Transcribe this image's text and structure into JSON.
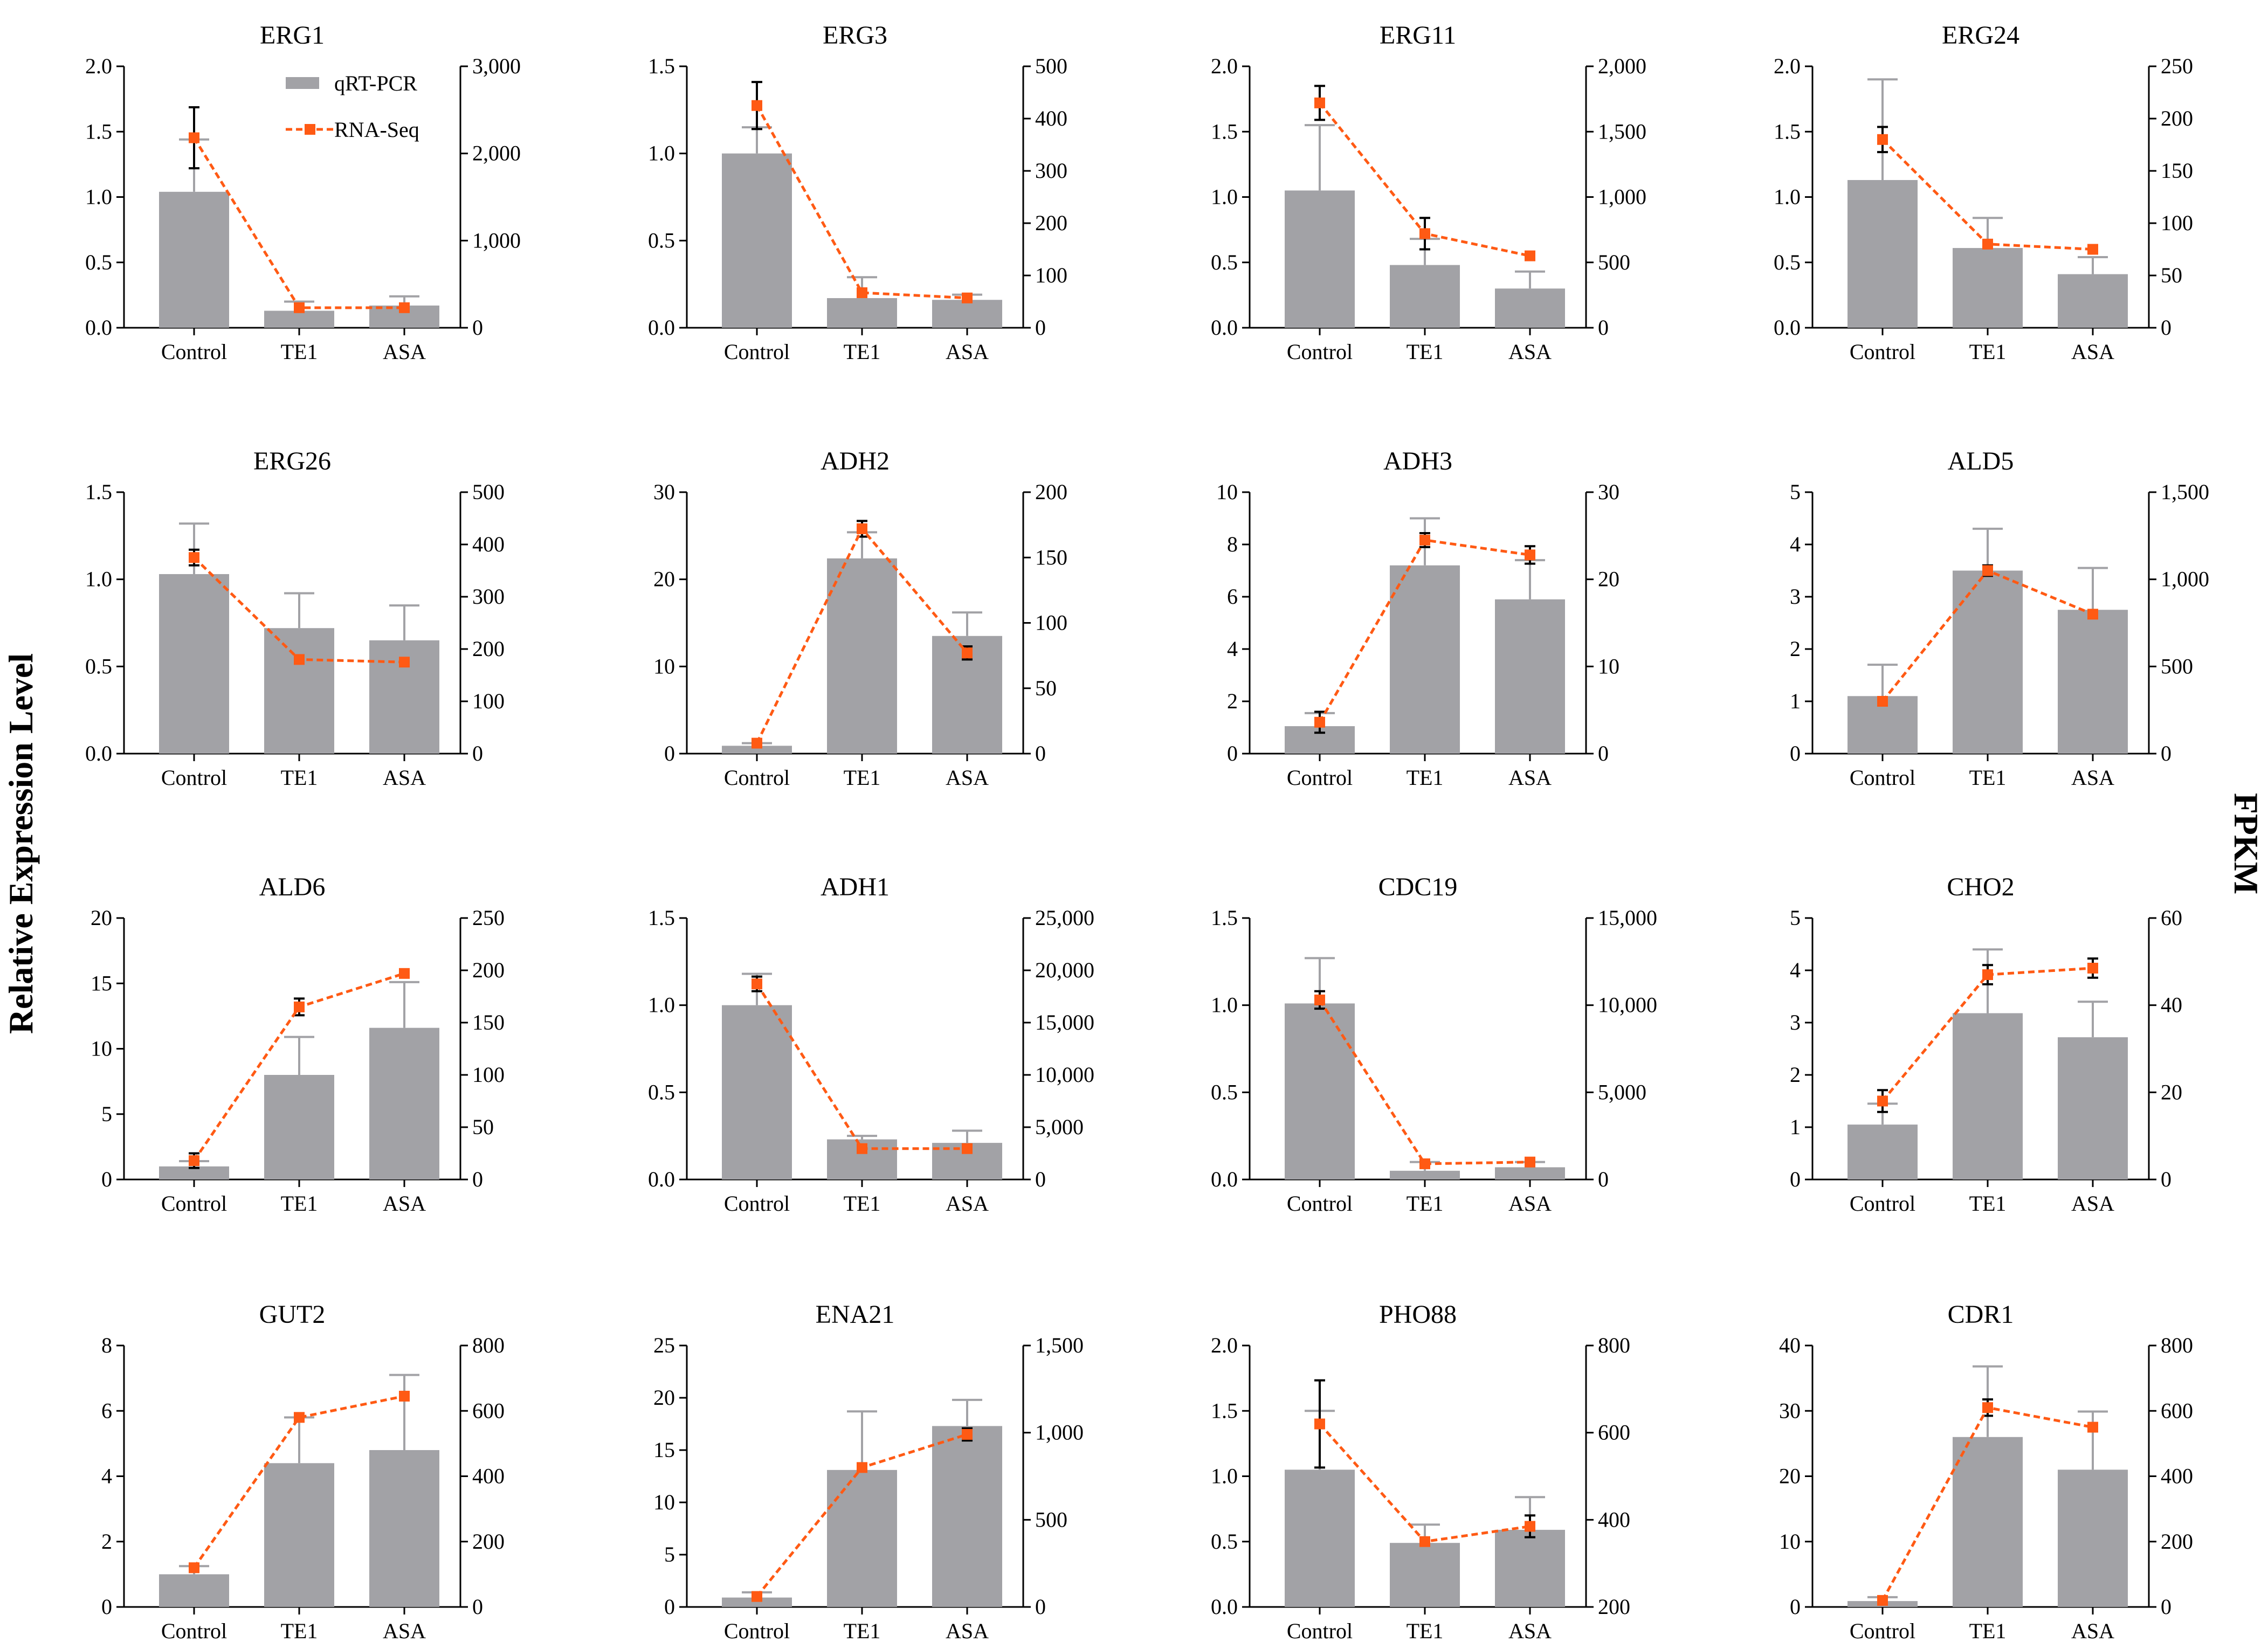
{
  "figure": {
    "left_axis_label": "Relative Expression Level",
    "right_axis_label": "FPKM",
    "legend": [
      {
        "label": "qRT-PCR",
        "kind": "bar"
      },
      {
        "label": "RNA-Seq",
        "kind": "line"
      }
    ],
    "colors": {
      "bar": "#a2a2a6",
      "line": "#ff5a14",
      "error_bar": "#a2a2a6",
      "line_error": "#000000"
    }
  },
  "chart_data": [
    {
      "type": "bar+line",
      "title": "ERG1",
      "categories": [
        "Control",
        "TE1",
        "ASA"
      ],
      "left_ticks": [
        "0.0",
        "0.5",
        "1.0",
        "1.5",
        "2.0"
      ],
      "left_max": 2.0,
      "right_ticks": [
        "0",
        "1,000",
        "2,000",
        "3,000"
      ],
      "right_max": 3000,
      "bars": [
        1.04,
        0.13,
        0.17
      ],
      "bar_err": [
        0.4,
        0.07,
        0.07
      ],
      "line": [
        2180,
        230,
        230
      ],
      "line_err": [
        350,
        0,
        0
      ]
    },
    {
      "type": "bar+line",
      "title": "ERG3",
      "categories": [
        "Control",
        "TE1",
        "ASA"
      ],
      "left_ticks": [
        "0.0",
        "0.5",
        "1.0",
        "1.5"
      ],
      "left_max": 1.5,
      "right_ticks": [
        "0",
        "100",
        "200",
        "300",
        "400",
        "500"
      ],
      "right_max": 500,
      "bars": [
        1.0,
        0.17,
        0.16
      ],
      "bar_err": [
        0.15,
        0.12,
        0.03
      ],
      "line": [
        425,
        67,
        57
      ],
      "line_err": [
        45,
        0,
        5
      ]
    },
    {
      "type": "bar+line",
      "title": "ERG11",
      "categories": [
        "Control",
        "TE1",
        "ASA"
      ],
      "left_ticks": [
        "0.0",
        "0.5",
        "1.0",
        "1.5",
        "2.0"
      ],
      "left_max": 2.0,
      "right_ticks": [
        "0",
        "500",
        "1,000",
        "1,500",
        "2,000"
      ],
      "right_max": 2000,
      "bars": [
        1.05,
        0.48,
        0.3
      ],
      "bar_err": [
        0.5,
        0.2,
        0.13
      ],
      "line": [
        1720,
        720,
        550
      ],
      "line_err": [
        130,
        120,
        0
      ]
    },
    {
      "type": "bar+line",
      "title": "ERG24",
      "categories": [
        "Control",
        "TE1",
        "ASA"
      ],
      "left_ticks": [
        "0.0",
        "0.5",
        "1.0",
        "1.5",
        "2.0"
      ],
      "left_max": 2.0,
      "right_ticks": [
        "0",
        "50",
        "100",
        "150",
        "200",
        "250"
      ],
      "right_max": 250,
      "bars": [
        1.13,
        0.61,
        0.41
      ],
      "bar_err": [
        0.77,
        0.23,
        0.13
      ],
      "line": [
        180,
        80,
        75
      ],
      "line_err": [
        12,
        0,
        0
      ]
    },
    {
      "type": "bar+line",
      "title": "ERG26",
      "categories": [
        "Control",
        "TE1",
        "ASA"
      ],
      "left_ticks": [
        "0.0",
        "0.5",
        "1.0",
        "1.5"
      ],
      "left_max": 1.5,
      "right_ticks": [
        "0",
        "100",
        "200",
        "300",
        "400",
        "500"
      ],
      "right_max": 500,
      "bars": [
        1.03,
        0.72,
        0.65
      ],
      "bar_err": [
        0.29,
        0.2,
        0.2
      ],
      "line": [
        375,
        180,
        175
      ],
      "line_err": [
        15,
        0,
        0
      ]
    },
    {
      "type": "bar+line",
      "title": "ADH2",
      "categories": [
        "Control",
        "TE1",
        "ASA"
      ],
      "left_ticks": [
        "0",
        "10",
        "20",
        "30"
      ],
      "left_max": 30,
      "right_ticks": [
        "0",
        "50",
        "100",
        "150",
        "200"
      ],
      "right_max": 200,
      "bars": [
        0.9,
        22.4,
        13.5
      ],
      "bar_err": [
        0.3,
        3.0,
        2.7
      ],
      "line": [
        8,
        172,
        77
      ],
      "line_err": [
        0,
        6,
        5
      ]
    },
    {
      "type": "bar+line",
      "title": "ADH3",
      "categories": [
        "Control",
        "TE1",
        "ASA"
      ],
      "left_ticks": [
        "0",
        "2",
        "4",
        "6",
        "8",
        "10"
      ],
      "left_max": 10,
      "right_ticks": [
        "0",
        "10",
        "20",
        "30"
      ],
      "right_max": 30,
      "bars": [
        1.05,
        7.2,
        5.9
      ],
      "bar_err": [
        0.5,
        1.8,
        1.5
      ],
      "line": [
        3.6,
        24.5,
        22.8
      ],
      "line_err": [
        1.2,
        0.8,
        1.0
      ]
    },
    {
      "type": "bar+line",
      "title": "ALD5",
      "categories": [
        "Control",
        "TE1",
        "ASA"
      ],
      "left_ticks": [
        "0",
        "1",
        "2",
        "3",
        "4",
        "5"
      ],
      "left_max": 5,
      "right_ticks": [
        "0",
        "500",
        "1,000",
        "1,500"
      ],
      "right_max": 1500,
      "bars": [
        1.1,
        3.5,
        2.75
      ],
      "bar_err": [
        0.6,
        0.8,
        0.8
      ],
      "line": [
        300,
        1050,
        800
      ],
      "line_err": [
        0,
        30,
        20
      ]
    },
    {
      "type": "bar+line",
      "title": "ALD6",
      "categories": [
        "Control",
        "TE1",
        "ASA"
      ],
      "left_ticks": [
        "0",
        "5",
        "10",
        "15",
        "20"
      ],
      "left_max": 20,
      "right_ticks": [
        "0",
        "50",
        "100",
        "150",
        "200",
        "250"
      ],
      "right_max": 250,
      "bars": [
        1.0,
        8.0,
        11.6
      ],
      "bar_err": [
        0.4,
        2.9,
        3.5
      ],
      "line": [
        18,
        165,
        197
      ],
      "line_err": [
        7,
        8,
        0
      ]
    },
    {
      "type": "bar+line",
      "title": "ADH1",
      "categories": [
        "Control",
        "TE1",
        "ASA"
      ],
      "left_ticks": [
        "0.0",
        "0.5",
        "1.0",
        "1.5"
      ],
      "left_max": 1.5,
      "right_ticks": [
        "0",
        "5,000",
        "10,000",
        "15,000",
        "20,000",
        "25,000"
      ],
      "right_max": 25000,
      "bars": [
        1.0,
        0.23,
        0.21
      ],
      "bar_err": [
        0.18,
        0.02,
        0.07
      ],
      "line": [
        18700,
        2950,
        2950
      ],
      "line_err": [
        700,
        0,
        0
      ]
    },
    {
      "type": "bar+line",
      "title": "CDC19",
      "categories": [
        "Control",
        "TE1",
        "ASA"
      ],
      "left_ticks": [
        "0.0",
        "0.5",
        "1.0",
        "1.5"
      ],
      "left_max": 1.5,
      "right_ticks": [
        "0",
        "5,000",
        "10,000",
        "15,000"
      ],
      "right_max": 15000,
      "bars": [
        1.01,
        0.05,
        0.07
      ],
      "bar_err": [
        0.26,
        0.05,
        0.03
      ],
      "line": [
        10300,
        900,
        1000
      ],
      "line_err": [
        500,
        0,
        0
      ]
    },
    {
      "type": "bar+line",
      "title": "CHO2",
      "categories": [
        "Control",
        "TE1",
        "ASA"
      ],
      "left_ticks": [
        "0",
        "1",
        "2",
        "3",
        "4",
        "5"
      ],
      "left_max": 5,
      "right_ticks": [
        "0",
        "20",
        "40",
        "60"
      ],
      "right_max": 60,
      "bars": [
        1.05,
        3.18,
        2.72
      ],
      "bar_err": [
        0.4,
        1.22,
        0.68
      ],
      "line": [
        18,
        47,
        48.5
      ],
      "line_err": [
        2.5,
        2.2,
        2.2
      ]
    },
    {
      "type": "bar+line",
      "title": "GUT2",
      "categories": [
        "Control",
        "TE1",
        "ASA"
      ],
      "left_ticks": [
        "0",
        "2",
        "4",
        "6",
        "8"
      ],
      "left_max": 8,
      "right_ticks": [
        "0",
        "200",
        "400",
        "600",
        "800"
      ],
      "right_max": 800,
      "bars": [
        1.0,
        4.4,
        4.8
      ],
      "bar_err": [
        0.25,
        1.4,
        2.3
      ],
      "line": [
        120,
        580,
        645
      ],
      "line_err": [
        0,
        12,
        0
      ]
    },
    {
      "type": "bar+line",
      "title": "ENA21",
      "categories": [
        "Control",
        "TE1",
        "ASA"
      ],
      "left_ticks": [
        "0",
        "5",
        "10",
        "15",
        "20",
        "25"
      ],
      "left_max": 25,
      "right_ticks": [
        "0",
        "500",
        "1,000",
        "1,500"
      ],
      "right_max": 1500,
      "bars": [
        0.9,
        13.1,
        17.3
      ],
      "bar_err": [
        0.5,
        5.6,
        2.5
      ],
      "line": [
        60,
        800,
        990
      ],
      "line_err": [
        0,
        0,
        35
      ]
    },
    {
      "type": "bar+line",
      "title": "PHO88",
      "categories": [
        "Control",
        "TE1",
        "ASA"
      ],
      "left_ticks": [
        "0.0",
        "0.5",
        "1.0",
        "1.5",
        "2.0"
      ],
      "left_max": 2.0,
      "right_ticks": [
        "200",
        "400",
        "600",
        "800"
      ],
      "right_min": 200,
      "right_max": 800,
      "bars": [
        1.05,
        0.49,
        0.59
      ],
      "bar_err": [
        0.45,
        0.14,
        0.25
      ],
      "line": [
        620,
        350,
        385
      ],
      "line_err": [
        100,
        0,
        25
      ]
    },
    {
      "type": "bar+line",
      "title": "CDR1",
      "categories": [
        "Control",
        "TE1",
        "ASA"
      ],
      "left_ticks": [
        "0",
        "10",
        "20",
        "30",
        "40"
      ],
      "left_max": 40,
      "right_ticks": [
        "0",
        "200",
        "400",
        "600",
        "800"
      ],
      "right_max": 800,
      "bars": [
        0.9,
        26,
        21
      ],
      "bar_err": [
        0.6,
        10.8,
        8.9
      ],
      "line": [
        20,
        610,
        550
      ],
      "line_err": [
        0,
        25,
        0
      ]
    }
  ]
}
